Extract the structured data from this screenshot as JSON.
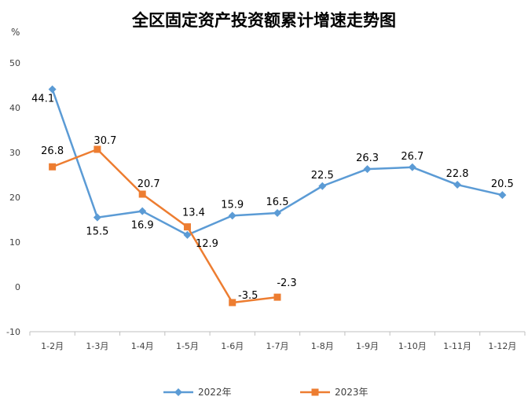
{
  "chart_data": {
    "type": "line",
    "title": "全区固定资产投资额累计增速走势图",
    "ylabel": "%",
    "xlabel": "",
    "ylim": [
      -10,
      50
    ],
    "yticks": [
      -10,
      0,
      10,
      20,
      30,
      40,
      50
    ],
    "grid": false,
    "legend": "bottom",
    "categories": [
      "1-2月",
      "1-3月",
      "1-4月",
      "1-5月",
      "1-6月",
      "1-7月",
      "1-8月",
      "1-9月",
      "1-10月",
      "1-11月",
      "1-12月"
    ],
    "series": [
      {
        "name": "2022年",
        "color": "#5B9BD5",
        "marker": "diamond",
        "values": [
          44.1,
          15.5,
          16.9,
          11.6,
          15.9,
          16.5,
          22.5,
          26.3,
          26.7,
          22.8,
          20.5
        ],
        "labels": [
          "44.1",
          "15.5",
          "16.9",
          "",
          "15.9",
          "16.5",
          "22.5",
          "26.3",
          "26.7",
          "22.8",
          "20.5"
        ]
      },
      {
        "name": "2023年",
        "color": "#ED7D31",
        "marker": "square",
        "values": [
          26.8,
          30.7,
          20.7,
          13.4,
          -3.5,
          -2.3,
          null,
          null,
          null,
          null,
          null
        ],
        "labels": [
          "26.8",
          "30.7",
          "20.7",
          "13.4",
          "-3.5",
          "-2.3",
          "",
          "",
          "",
          "",
          ""
        ]
      }
    ],
    "annotations": [
      {
        "text": "12.9"
      }
    ]
  }
}
